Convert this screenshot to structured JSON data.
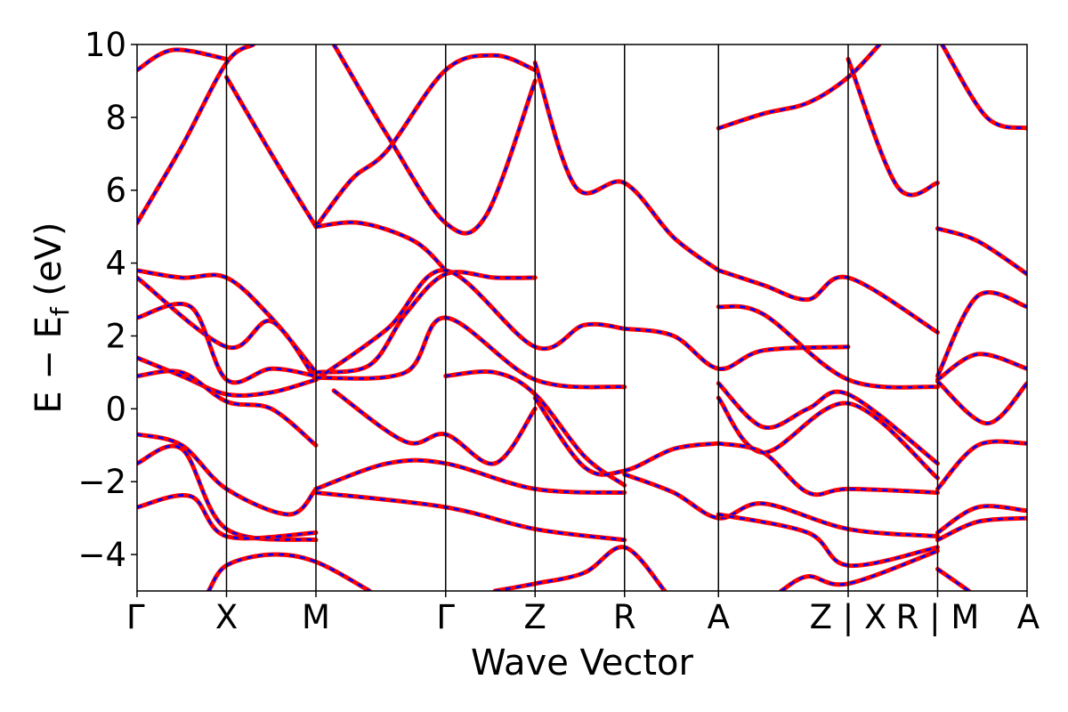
{
  "chart_data": {
    "type": "line",
    "xlabel": "Wave Vector",
    "ylabel": "E − E",
    "ylabel_sub": "f",
    "ylabel_unit": " (eV)",
    "ylim": [
      -5,
      10
    ],
    "yticks": [
      -4,
      -2,
      0,
      2,
      4,
      6,
      8,
      10
    ],
    "ytick_labels": [
      "−4",
      "−2",
      "0",
      "2",
      "4",
      "6",
      "8",
      "10"
    ],
    "kpath_positions": [
      0,
      1,
      2,
      3.45,
      4.45,
      5.45,
      6.5,
      7.95,
      8.95,
      9.95
    ],
    "kpath_labels": [
      "Γ",
      "X",
      "M",
      "Γ",
      "Z",
      "R",
      "A",
      "Z | X",
      "R | M",
      "A"
    ],
    "grid": false,
    "colors": {
      "red": "#ff0000",
      "blue": "#0000ff"
    },
    "series": [
      {
        "points": [
          [
            0,
            9.3
          ],
          [
            0.4,
            9.85
          ],
          [
            1,
            9.6
          ]
        ]
      },
      {
        "points": [
          [
            1,
            9.1
          ],
          [
            1.5,
            7.0
          ],
          [
            2,
            5.0
          ]
        ]
      },
      {
        "points": [
          [
            0,
            5.1
          ],
          [
            0.5,
            7.2
          ],
          [
            1,
            9.5
          ],
          [
            1.3,
            10
          ]
        ]
      },
      {
        "points": [
          [
            2,
            5.0
          ],
          [
            2.4,
            6.3
          ],
          [
            2.8,
            7.1
          ],
          [
            3.45,
            9.3
          ],
          [
            4,
            9.7
          ],
          [
            4.45,
            9.3
          ]
        ]
      },
      {
        "points": [
          [
            2,
            5.0
          ],
          [
            2.5,
            5.1
          ],
          [
            3.1,
            4.6
          ],
          [
            3.45,
            3.8
          ]
        ]
      },
      {
        "points": [
          [
            2.2,
            10
          ],
          [
            2.8,
            7.5
          ],
          [
            3.45,
            5.1
          ],
          [
            3.9,
            5.3
          ],
          [
            4.45,
            9.0
          ]
        ]
      },
      {
        "points": [
          [
            4.45,
            9.5
          ],
          [
            4.9,
            6.1
          ],
          [
            5.45,
            6.2
          ],
          [
            6.0,
            4.7
          ],
          [
            6.5,
            3.8
          ]
        ]
      },
      {
        "points": [
          [
            6.5,
            7.7
          ],
          [
            7.0,
            8.1
          ],
          [
            7.5,
            8.4
          ],
          [
            7.95,
            9.1
          ],
          [
            8.3,
            10
          ]
        ]
      },
      {
        "points": [
          [
            7.95,
            9.6
          ],
          [
            8.5,
            6.1
          ],
          [
            8.95,
            6.2
          ]
        ]
      },
      {
        "points": [
          [
            9.0,
            10
          ],
          [
            9.5,
            8.0
          ],
          [
            9.95,
            7.7
          ]
        ]
      },
      {
        "points": [
          [
            8.95,
            4.95
          ],
          [
            9.4,
            4.6
          ],
          [
            9.95,
            3.7
          ]
        ]
      },
      {
        "points": [
          [
            0,
            3.8
          ],
          [
            0.5,
            3.6
          ],
          [
            1,
            3.6
          ],
          [
            1.5,
            2.5
          ],
          [
            2,
            1.0
          ]
        ]
      },
      {
        "points": [
          [
            0,
            3.6
          ],
          [
            1,
            1.7
          ],
          [
            1.5,
            2.4
          ],
          [
            2,
            0.8
          ]
        ]
      },
      {
        "points": [
          [
            0,
            2.5
          ],
          [
            0.6,
            2.8
          ],
          [
            1,
            0.8
          ],
          [
            1.5,
            1.1
          ],
          [
            2,
            0.9
          ]
        ]
      },
      {
        "points": [
          [
            0,
            1.4
          ],
          [
            0.5,
            0.9
          ],
          [
            1,
            0.4
          ],
          [
            1.5,
            0.45
          ],
          [
            2,
            0.8
          ]
        ]
      },
      {
        "points": [
          [
            0,
            0.9
          ],
          [
            0.5,
            1.0
          ],
          [
            1,
            0.2
          ],
          [
            1.5,
            0.0
          ],
          [
            2,
            -1.0
          ]
        ]
      },
      {
        "points": [
          [
            2,
            1.0
          ],
          [
            2.6,
            1.2
          ],
          [
            3.0,
            2.6
          ],
          [
            3.45,
            3.7
          ],
          [
            4,
            3.6
          ],
          [
            4.45,
            3.6
          ]
        ]
      },
      {
        "points": [
          [
            2,
            0.8
          ],
          [
            2.8,
            2.2
          ],
          [
            3.45,
            3.8
          ],
          [
            4.45,
            1.7
          ],
          [
            5.0,
            2.3
          ],
          [
            5.45,
            2.2
          ]
        ]
      },
      {
        "points": [
          [
            2,
            0.85
          ],
          [
            3.0,
            1.0
          ],
          [
            3.45,
            2.5
          ],
          [
            4.45,
            0.8
          ],
          [
            5.45,
            0.6
          ]
        ]
      },
      {
        "points": [
          [
            2.2,
            0.5
          ],
          [
            3.0,
            -0.9
          ],
          [
            3.45,
            -0.7
          ],
          [
            4.0,
            -1.5
          ],
          [
            4.45,
            0.0
          ]
        ]
      },
      {
        "points": [
          [
            3.45,
            0.9
          ],
          [
            4.0,
            1.0
          ],
          [
            4.45,
            0.4
          ],
          [
            5.0,
            -1.3
          ],
          [
            5.45,
            -2.1
          ]
        ]
      },
      {
        "points": [
          [
            4.45,
            0.3
          ],
          [
            5.0,
            -1.6
          ],
          [
            5.45,
            -1.7
          ],
          [
            6.0,
            -1.1
          ],
          [
            6.5,
            -0.95
          ]
        ]
      },
      {
        "points": [
          [
            5.45,
            2.2
          ],
          [
            6.0,
            2.0
          ],
          [
            6.5,
            1.1
          ],
          [
            7.0,
            1.6
          ],
          [
            7.95,
            1.7
          ]
        ]
      },
      {
        "points": [
          [
            6.5,
            3.8
          ],
          [
            7.0,
            3.4
          ],
          [
            7.5,
            3.0
          ],
          [
            7.95,
            3.6
          ],
          [
            8.95,
            2.1
          ]
        ]
      },
      {
        "points": [
          [
            6.5,
            2.8
          ],
          [
            7.0,
            2.6
          ],
          [
            7.95,
            0.8
          ],
          [
            8.95,
            0.6
          ]
        ]
      },
      {
        "points": [
          [
            6.5,
            0.7
          ],
          [
            7.0,
            -0.5
          ],
          [
            7.5,
            0.0
          ],
          [
            7.95,
            0.4
          ],
          [
            8.95,
            -1.5
          ]
        ]
      },
      {
        "points": [
          [
            6.5,
            0.3
          ],
          [
            7.0,
            -1.2
          ],
          [
            7.95,
            0.15
          ],
          [
            8.95,
            -1.9
          ]
        ]
      },
      {
        "points": [
          [
            6.5,
            -0.95
          ],
          [
            7.0,
            -1.2
          ],
          [
            7.5,
            -2.3
          ],
          [
            7.95,
            -2.2
          ],
          [
            8.95,
            -2.3
          ]
        ]
      },
      {
        "points": [
          [
            8.95,
            0.8
          ],
          [
            9.4,
            1.5
          ],
          [
            9.95,
            1.1
          ]
        ]
      },
      {
        "points": [
          [
            8.95,
            0.9
          ],
          [
            9.4,
            3.1
          ],
          [
            9.95,
            2.8
          ]
        ]
      },
      {
        "points": [
          [
            8.95,
            0.75
          ],
          [
            9.5,
            -0.4
          ],
          [
            9.95,
            0.7
          ]
        ]
      },
      {
        "points": [
          [
            8.95,
            -2.2
          ],
          [
            9.4,
            -1.0
          ],
          [
            9.95,
            -0.95
          ]
        ]
      },
      {
        "points": [
          [
            0,
            -0.7
          ],
          [
            0.5,
            -1.0
          ],
          [
            1,
            -2.2
          ],
          [
            1.7,
            -2.9
          ],
          [
            2,
            -2.2
          ]
        ]
      },
      {
        "points": [
          [
            0,
            -1.5
          ],
          [
            0.5,
            -1.1
          ],
          [
            1,
            -3.3
          ],
          [
            2,
            -3.6
          ]
        ]
      },
      {
        "points": [
          [
            0,
            -2.7
          ],
          [
            0.6,
            -2.4
          ],
          [
            1,
            -3.5
          ],
          [
            2,
            -3.4
          ]
        ]
      },
      {
        "points": [
          [
            2,
            -2.2
          ],
          [
            2.8,
            -1.5
          ],
          [
            3.45,
            -1.5
          ],
          [
            4.45,
            -2.2
          ],
          [
            5.45,
            -2.3
          ]
        ]
      },
      {
        "points": [
          [
            2,
            -2.3
          ],
          [
            3.45,
            -2.7
          ],
          [
            4.45,
            -3.3
          ],
          [
            5.45,
            -3.6
          ]
        ]
      },
      {
        "points": [
          [
            5.45,
            -1.8
          ],
          [
            6.0,
            -2.3
          ],
          [
            6.5,
            -3.0
          ],
          [
            7.0,
            -2.6
          ],
          [
            7.95,
            -3.3
          ],
          [
            8.95,
            -3.5
          ]
        ]
      },
      {
        "points": [
          [
            6.5,
            -2.9
          ],
          [
            7.5,
            -3.4
          ],
          [
            7.95,
            -4.3
          ],
          [
            8.95,
            -3.8
          ]
        ]
      },
      {
        "points": [
          [
            8.95,
            -3.4
          ],
          [
            9.4,
            -2.7
          ],
          [
            9.95,
            -2.8
          ]
        ]
      },
      {
        "points": [
          [
            8.95,
            -3.6
          ],
          [
            9.4,
            -3.1
          ],
          [
            9.95,
            -3.0
          ]
        ]
      },
      {
        "points": [
          [
            0.8,
            -5.0
          ],
          [
            1,
            -4.3
          ],
          [
            1.5,
            -4.0
          ],
          [
            2,
            -4.2
          ],
          [
            2.6,
            -5.0
          ]
        ]
      },
      {
        "points": [
          [
            4.0,
            -5.0
          ],
          [
            4.45,
            -4.8
          ],
          [
            5.0,
            -4.5
          ],
          [
            5.45,
            -3.8
          ],
          [
            5.9,
            -5.0
          ]
        ]
      },
      {
        "points": [
          [
            7.2,
            -5.0
          ],
          [
            7.5,
            -4.6
          ],
          [
            7.95,
            -4.8
          ],
          [
            8.95,
            -3.9
          ]
        ]
      },
      {
        "points": [
          [
            8.95,
            -4.4
          ],
          [
            9.3,
            -5.0
          ]
        ]
      }
    ]
  }
}
